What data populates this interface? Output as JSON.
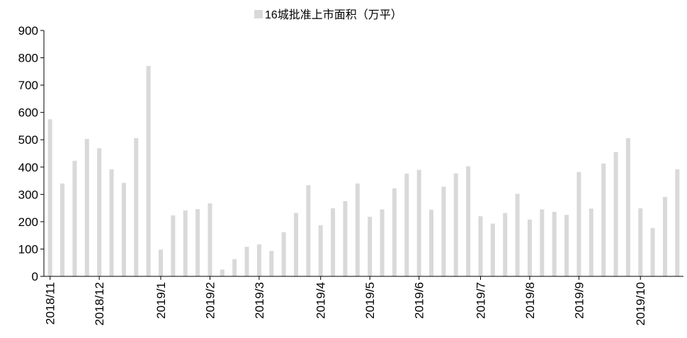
{
  "chart_data": {
    "type": "bar",
    "legend": "16城批准上市面积（万平）",
    "series": [
      {
        "name": "16城批准上市面积（万平）",
        "color": "#d9d9d9",
        "values": [
          575,
          340,
          423,
          503,
          469,
          392,
          342,
          506,
          770,
          98,
          223,
          241,
          246,
          267,
          25,
          63,
          108,
          117,
          93,
          162,
          232,
          334,
          187,
          249,
          275,
          340,
          218,
          245,
          322,
          376,
          390,
          244,
          328,
          377,
          403,
          220,
          193,
          232,
          302,
          208,
          245,
          236,
          225,
          382,
          248,
          413,
          455,
          506,
          249,
          177,
          291,
          392
        ]
      }
    ],
    "categories": [
      "2018/11",
      null,
      null,
      null,
      "2018/12",
      null,
      null,
      null,
      null,
      "2019/1",
      null,
      null,
      null,
      "2019/2",
      null,
      null,
      null,
      "2019/3",
      null,
      null,
      null,
      null,
      "2019/4",
      null,
      null,
      null,
      "2019/5",
      null,
      null,
      null,
      "2019/6",
      null,
      null,
      null,
      null,
      "2019/7",
      null,
      null,
      null,
      "2019/8",
      null,
      null,
      null,
      "2019/9",
      null,
      null,
      null,
      null,
      "2019/10",
      null,
      null,
      null
    ],
    "ylim": [
      0,
      900
    ],
    "yticks": [
      0,
      100,
      200,
      300,
      400,
      500,
      600,
      700,
      800,
      900
    ],
    "legend_position": "top"
  }
}
